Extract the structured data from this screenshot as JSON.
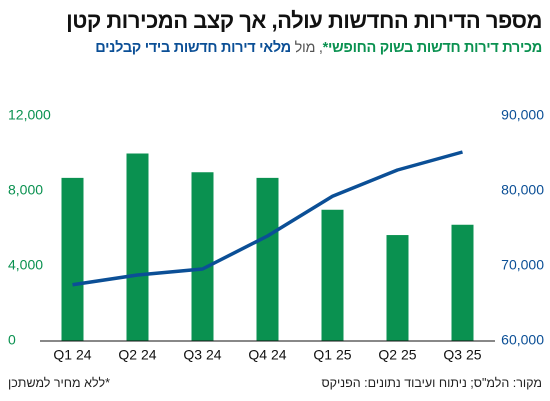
{
  "chart_data": {
    "type": "bar-line",
    "title": "מספר הדירות החדשות עולה, אך קצב המכירות קטן",
    "subtitle_connector": ", מול",
    "categories": [
      "Q1 24",
      "Q2 24",
      "Q3 24",
      "Q4 24",
      "Q1 25",
      "Q2 25",
      "Q3 25"
    ],
    "series": [
      {
        "name": "מכירת דירות חדשות בשוק החופשי*",
        "color": "#0a9150",
        "type": "bar",
        "axis": "y",
        "values": [
          8700,
          10000,
          9000,
          8700,
          7000,
          5650,
          6200
        ]
      },
      {
        "name": "מלאי דירות חדשות בידי קבלנים",
        "color": "#0b4f96",
        "type": "line",
        "axis": "y2",
        "values": [
          67500,
          68800,
          69600,
          74000,
          79300,
          82800,
          85200
        ]
      }
    ],
    "ylim": [
      0,
      12000
    ],
    "yticks": [
      0,
      {
        "value": 4000,
        "label": "4,000"
      },
      {
        "value": 8000,
        "label": "8,000"
      },
      {
        "value": 12000,
        "label": "12,000"
      }
    ],
    "y2lim": [
      60000,
      90000
    ],
    "y2ticks": [
      {
        "value": 60000,
        "label": "60,000"
      },
      {
        "value": 70000,
        "label": "70,000"
      },
      {
        "value": 80000,
        "label": "80,000"
      },
      {
        "value": 90000,
        "label": "90,000"
      }
    ],
    "grid": false,
    "footnote": "*ללא מחיר למשתכן",
    "source": "מקור: הלמ\"ס; ניתוח ועיבוד נתונים: הפניקס"
  }
}
